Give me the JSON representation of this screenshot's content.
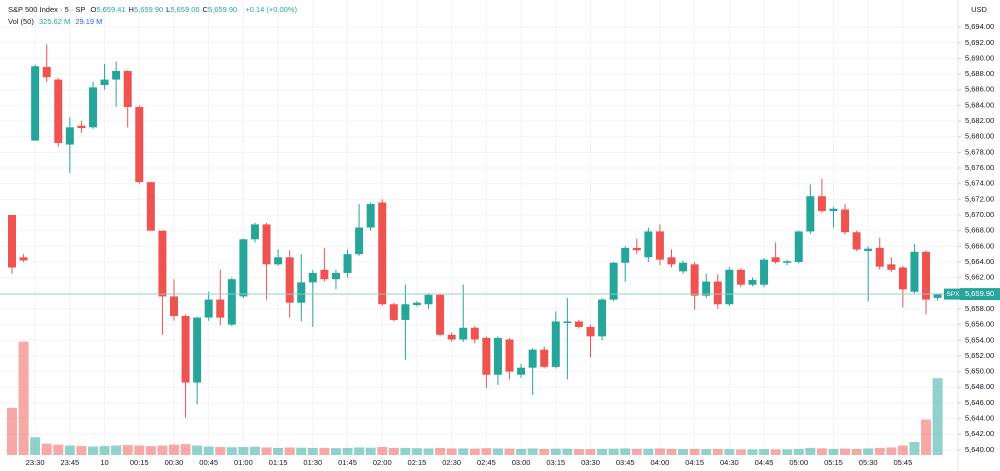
{
  "chart_data": {
    "type": "candlestick",
    "header": {
      "symbol": "S&P 500 Index · 5 · SP",
      "ohlc": [
        {
          "key": "O",
          "value": "5,659.41"
        },
        {
          "key": "H",
          "value": "5,659.90"
        },
        {
          "key": "L",
          "value": "5,659.06"
        },
        {
          "key": "C",
          "value": "5,659.90"
        }
      ],
      "change": "+0.14 (+0.00%)",
      "volume_label": "Vol (50)",
      "volume": "325.62 M",
      "volume_ma": "29.19 M"
    },
    "currency": "USD",
    "price_tag": {
      "symbol": "SPX",
      "label": "5,659.90"
    },
    "up_color": "#26a69a",
    "down_color": "#ef5350",
    "grid": true,
    "categories": [
      null,
      null,
      "23:30",
      null,
      null,
      "23:45",
      null,
      null,
      "10",
      null,
      null,
      "00:15",
      null,
      null,
      "00:30",
      null,
      null,
      "00:45",
      null,
      null,
      "01:00",
      null,
      null,
      "01:15",
      null,
      null,
      "01:30",
      null,
      null,
      "01:45",
      null,
      null,
      "02:00",
      null,
      null,
      "02:15",
      null,
      null,
      "02:30",
      null,
      null,
      "02:45",
      null,
      null,
      "03:00",
      null,
      null,
      "03:15",
      null,
      null,
      "03:30",
      null,
      null,
      "03:45",
      null,
      null,
      "04:00",
      null,
      null,
      "04:15",
      null,
      null,
      "04:30",
      null,
      null,
      "04:45",
      null,
      null,
      "05:00",
      null,
      null,
      "05:15",
      null,
      null,
      "05:30",
      null,
      null,
      "05:45",
      null,
      null,
      null
    ],
    "open": [
      5670,
      5664.6,
      5679.5,
      5688.9,
      5687.3,
      5679,
      5681.4,
      5681.2,
      5686.6,
      5687.3,
      5688.4,
      5683.8,
      5674.2,
      5668,
      5659.6,
      5657.1,
      5648.6,
      5656.9,
      5659.2,
      5656,
      5659.6,
      5666.9,
      5668.8,
      5663.7,
      5664.6,
      5658.8,
      5661.4,
      5663,
      5661.8,
      5662.6,
      5665,
      5668.4,
      5671.6,
      5658.6,
      5656.6,
      5658.5,
      5658.6,
      5659.8,
      5654.7,
      5654.1,
      5655.6,
      5654.3,
      5649.6,
      5654.1,
      5649.6,
      5650.5,
      5652.8,
      5650.6,
      5656.2,
      5656.4,
      5655.7,
      5654.5,
      5659.2,
      5663.9,
      5665.8,
      5664.6,
      5667.9,
      5664.6,
      5662.8,
      5663.7,
      5659.7,
      5661.5,
      5658.6,
      5663,
      5661.1,
      5661.1,
      5664.6,
      5663.9,
      5664,
      5667.9,
      5672.4,
      5670.5,
      5670.7,
      5667.8,
      5665.4,
      5665.8,
      5663.7,
      5663.3,
      5660.2,
      5665.3,
      5659.41
    ],
    "high": [
      5670,
      5665,
      5689.2,
      5691.8,
      5687.5,
      5682.5,
      5682,
      5687,
      5689.3,
      5689.6,
      5688.5,
      5684,
      5674.2,
      5668,
      5661.8,
      5657.3,
      5657,
      5660.2,
      5663,
      5662,
      5667,
      5669,
      5669,
      5665.6,
      5665.5,
      5665,
      5663,
      5665.8,
      5663,
      5665.6,
      5671.4,
      5671.6,
      5672,
      5658.8,
      5661.1,
      5659,
      5660,
      5660,
      5655,
      5661.1,
      5655.8,
      5654.5,
      5654.5,
      5654.3,
      5651,
      5653,
      5653.2,
      5657.7,
      5659.4,
      5656.6,
      5656,
      5659.4,
      5664,
      5666,
      5667,
      5668.4,
      5668.8,
      5665.6,
      5664.2,
      5664,
      5662.5,
      5662.4,
      5663.3,
      5663.2,
      5662,
      5664.5,
      5666.5,
      5664.3,
      5668,
      5673.9,
      5674.6,
      5671,
      5671.4,
      5668,
      5666,
      5667.1,
      5664.6,
      5663.5,
      5666.3,
      5665.5,
      5659.9
    ],
    "low": [
      5662.5,
      5664,
      5679.5,
      5687,
      5678.7,
      5675.4,
      5680.5,
      5681,
      5686,
      5683.8,
      5681.2,
      5674,
      5668,
      5654.7,
      5656.5,
      5644.1,
      5645.8,
      5656.5,
      5655.9,
      5655.8,
      5659.4,
      5666.5,
      5659.2,
      5663.5,
      5656.9,
      5656.4,
      5655.7,
      5661.5,
      5660.5,
      5662,
      5664.8,
      5668,
      5658.4,
      5656.4,
      5651.5,
      5658.3,
      5658,
      5654.5,
      5653.8,
      5653.8,
      5653.6,
      5647.9,
      5648.3,
      5649,
      5649.2,
      5647,
      5650.4,
      5650.4,
      5649,
      5655.5,
      5651.8,
      5654,
      5659,
      5661.5,
      5665,
      5664,
      5663.6,
      5663.3,
      5662.5,
      5657.9,
      5659.4,
      5658,
      5658.4,
      5660.8,
      5660.9,
      5660.8,
      5663.8,
      5663.6,
      5663.8,
      5667.6,
      5670.3,
      5668.4,
      5667.5,
      5665.4,
      5659,
      5663,
      5662.7,
      5658.2,
      5660,
      5657.3,
      5659.06
    ],
    "close": [
      5663.3,
      5664.2,
      5689,
      5687.6,
      5679.2,
      5681.2,
      5681.1,
      5686.3,
      5687.3,
      5688.4,
      5683.8,
      5674.2,
      5668,
      5659.6,
      5657.1,
      5648.6,
      5656.9,
      5659.2,
      5656.9,
      5661.8,
      5666.9,
      5668.8,
      5663.7,
      5664.6,
      5658.8,
      5661.4,
      5662.6,
      5661.8,
      5662.6,
      5665,
      5668.4,
      5671.4,
      5658.6,
      5656.6,
      5658.6,
      5658.8,
      5659.8,
      5654.7,
      5654.1,
      5655.6,
      5654.1,
      5649.6,
      5654.3,
      5650,
      5650.5,
      5652.8,
      5650.6,
      5656.4,
      5656.4,
      5655.7,
      5654.5,
      5659.2,
      5663.9,
      5665.8,
      5665.5,
      5667.9,
      5664.3,
      5663.7,
      5663.9,
      5659.7,
      5661.5,
      5658.6,
      5663,
      5661.1,
      5661.7,
      5664.3,
      5664,
      5664.1,
      5667.9,
      5672.4,
      5670.5,
      5670.8,
      5667.8,
      5665.6,
      5665.7,
      5663.4,
      5663,
      5660.5,
      5665.3,
      5659.2,
      5659.9
    ],
    "volume": [
      200,
      480,
      75,
      48,
      44,
      40,
      38,
      36,
      38,
      40,
      42,
      40,
      38,
      40,
      44,
      46,
      40,
      36,
      34,
      33,
      34,
      35,
      32,
      30,
      32,
      31,
      30,
      30,
      29,
      30,
      32,
      31,
      34,
      30,
      30,
      29,
      28,
      30,
      28,
      28,
      27,
      29,
      28,
      27,
      26,
      28,
      26,
      27,
      27,
      25,
      25,
      26,
      27,
      28,
      26,
      27,
      28,
      26,
      25,
      26,
      25,
      26,
      25,
      24,
      24,
      25,
      24,
      24,
      26,
      30,
      28,
      26,
      27,
      26,
      28,
      30,
      32,
      40,
      55,
      150,
      325.62
    ],
    "ylim": [
      5638.9,
      5695.1
    ],
    "yticks": [
      {
        "value": 5640,
        "label": "5,640.00"
      },
      {
        "value": 5642,
        "label": "5,642.00"
      },
      {
        "value": 5644,
        "label": "5,644.00"
      },
      {
        "value": 5646,
        "label": "5,646.00"
      },
      {
        "value": 5648,
        "label": "5,648.00"
      },
      {
        "value": 5650,
        "label": "5,650.00"
      },
      {
        "value": 5652,
        "label": "5,652.00"
      },
      {
        "value": 5654,
        "label": "5,654.00"
      },
      {
        "value": 5656,
        "label": "5,656.00"
      },
      {
        "value": 5658,
        "label": "5,658.00"
      },
      {
        "value": 5660,
        "label": "5,660.00"
      },
      {
        "value": 5662,
        "label": "5,662.00"
      },
      {
        "value": 5664,
        "label": "5,664.00"
      },
      {
        "value": 5666,
        "label": "5,666.00"
      },
      {
        "value": 5668,
        "label": "5,668.00"
      },
      {
        "value": 5670,
        "label": "5,670.00"
      },
      {
        "value": 5672,
        "label": "5,672.00"
      },
      {
        "value": 5674,
        "label": "5,674.00"
      },
      {
        "value": 5676,
        "label": "5,676.00"
      },
      {
        "value": 5678,
        "label": "5,678.00"
      },
      {
        "value": 5680,
        "label": "5,680.00"
      },
      {
        "value": 5682,
        "label": "5,682.00"
      },
      {
        "value": 5684,
        "label": "5,684.00"
      },
      {
        "value": 5686,
        "label": "5,686.00"
      },
      {
        "value": 5688,
        "label": "5,688.00"
      },
      {
        "value": 5690,
        "label": "5,690.00"
      },
      {
        "value": 5692,
        "label": "5,692.00"
      },
      {
        "value": 5694,
        "label": "5,694.00"
      }
    ]
  }
}
